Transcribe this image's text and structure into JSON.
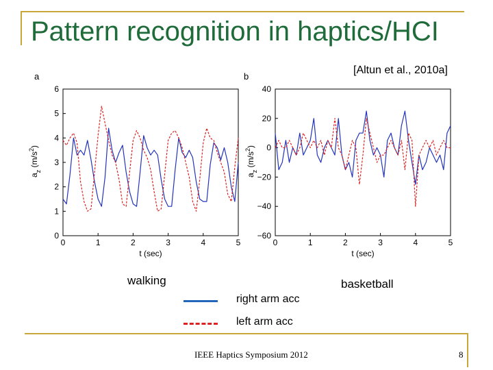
{
  "slide": {
    "title": "Pattern recognition in haptics/HCI",
    "citation": "[Altun et al., 2010a]",
    "caption_left": "walking",
    "caption_right": "basketball",
    "footer": "IEEE Haptics Symposium 2012",
    "page_number": "8"
  },
  "legend": {
    "right_label": "right arm acc",
    "left_label": "left arm acc"
  },
  "colors": {
    "accent_frame": "#c9a63a",
    "title": "#1f6b3a",
    "right_series": "#2233bb",
    "left_series": "#dd2222"
  },
  "chart_data": [
    {
      "type": "line",
      "panel_label": "a",
      "xlabel": "t (sec)",
      "ylabel": "a",
      "ylabel_sub": "z",
      "ylabel_unit": "(m/s",
      "ylabel_sup": "2",
      "ylabel_end": ")",
      "xlim": [
        0,
        5
      ],
      "ylim": [
        0,
        6
      ],
      "xticks": [
        0,
        1,
        2,
        3,
        4,
        5
      ],
      "yticks": [
        0,
        1,
        2,
        3,
        4,
        5,
        6
      ],
      "x": [
        0.0,
        0.1,
        0.2,
        0.3,
        0.4,
        0.5,
        0.6,
        0.7,
        0.8,
        0.9,
        1.0,
        1.1,
        1.2,
        1.3,
        1.4,
        1.5,
        1.6,
        1.7,
        1.8,
        1.9,
        2.0,
        2.1,
        2.2,
        2.3,
        2.4,
        2.5,
        2.6,
        2.7,
        2.8,
        2.9,
        3.0,
        3.1,
        3.2,
        3.3,
        3.4,
        3.5,
        3.6,
        3.7,
        3.8,
        3.9,
        4.0,
        4.1,
        4.2,
        4.3,
        4.4,
        4.5,
        4.6,
        4.7,
        4.8,
        4.9,
        5.0
      ],
      "series": [
        {
          "name": "right arm acc",
          "style": "solid",
          "values": [
            1.5,
            1.3,
            2.5,
            4.0,
            3.3,
            3.5,
            3.3,
            3.9,
            3.1,
            2.2,
            1.5,
            1.2,
            2.4,
            4.4,
            3.5,
            3.0,
            3.4,
            3.7,
            2.6,
            1.8,
            1.3,
            1.2,
            2.6,
            4.1,
            3.6,
            3.3,
            3.5,
            3.3,
            2.3,
            1.5,
            1.2,
            1.2,
            2.7,
            4.0,
            3.4,
            3.2,
            3.5,
            3.2,
            2.2,
            1.5,
            1.4,
            1.4,
            2.9,
            3.8,
            3.6,
            3.1,
            3.6,
            3.0,
            2.0,
            1.4,
            3.0
          ]
        },
        {
          "name": "left arm acc",
          "style": "dashed",
          "values": [
            3.9,
            3.7,
            4.0,
            4.2,
            3.8,
            2.2,
            1.4,
            1.0,
            1.1,
            2.6,
            4.1,
            5.3,
            4.6,
            3.9,
            3.3,
            3.0,
            2.3,
            1.3,
            1.2,
            2.6,
            3.9,
            4.3,
            4.0,
            3.5,
            3.2,
            2.7,
            1.8,
            1.0,
            1.1,
            2.5,
            3.9,
            4.2,
            4.3,
            4.0,
            3.6,
            3.0,
            2.4,
            1.4,
            1.0,
            2.3,
            3.8,
            4.4,
            4.0,
            3.9,
            3.4,
            3.0,
            2.6,
            1.7,
            1.4,
            2.8,
            4.0
          ]
        }
      ]
    },
    {
      "type": "line",
      "panel_label": "b",
      "xlabel": "t (sec)",
      "ylabel": "a",
      "ylabel_sub": "z",
      "ylabel_unit": "(m/s",
      "ylabel_sup": "2",
      "ylabel_end": ")",
      "xlim": [
        0,
        5
      ],
      "ylim": [
        -60,
        40
      ],
      "xticks": [
        0,
        1,
        2,
        3,
        4,
        5
      ],
      "yticks": [
        -60,
        -40,
        -20,
        0,
        20,
        40
      ],
      "x": [
        0.0,
        0.1,
        0.2,
        0.3,
        0.4,
        0.5,
        0.6,
        0.7,
        0.8,
        0.9,
        1.0,
        1.1,
        1.2,
        1.3,
        1.4,
        1.5,
        1.6,
        1.7,
        1.8,
        1.9,
        2.0,
        2.1,
        2.2,
        2.3,
        2.4,
        2.5,
        2.6,
        2.7,
        2.8,
        2.9,
        3.0,
        3.1,
        3.2,
        3.3,
        3.4,
        3.5,
        3.6,
        3.7,
        3.8,
        3.9,
        4.0,
        4.1,
        4.2,
        4.3,
        4.4,
        4.5,
        4.6,
        4.7,
        4.8,
        4.9,
        5.0
      ],
      "series": [
        {
          "name": "right arm acc",
          "style": "solid",
          "values": [
            10,
            -15,
            -10,
            5,
            -10,
            0,
            -5,
            10,
            -5,
            0,
            5,
            20,
            -5,
            -10,
            0,
            5,
            0,
            -5,
            20,
            -5,
            -15,
            -10,
            -20,
            5,
            10,
            10,
            25,
            5,
            -5,
            0,
            -5,
            -20,
            5,
            10,
            0,
            -5,
            15,
            25,
            5,
            -10,
            -25,
            -5,
            -15,
            -10,
            0,
            -5,
            -10,
            -5,
            -15,
            10,
            15
          ]
        },
        {
          "name": "left arm acc",
          "style": "dashed",
          "values": [
            0,
            5,
            0,
            0,
            5,
            0,
            -5,
            0,
            10,
            5,
            0,
            5,
            0,
            5,
            -5,
            5,
            0,
            20,
            0,
            -5,
            -15,
            -5,
            5,
            0,
            -25,
            -5,
            20,
            10,
            0,
            -10,
            -5,
            -5,
            0,
            5,
            0,
            -5,
            5,
            -15,
            10,
            5,
            -40,
            -5,
            0,
            5,
            0,
            5,
            -5,
            0,
            5,
            0,
            0
          ]
        }
      ]
    }
  ]
}
